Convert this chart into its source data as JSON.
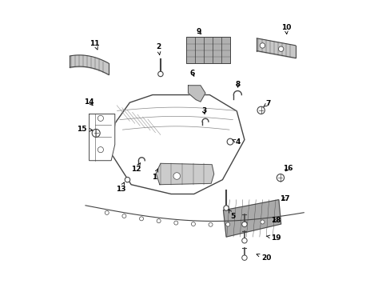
{
  "background_color": "#ffffff",
  "gray": "#444444",
  "light_gray": "#888888",
  "parts_labels": [
    [
      1,
      0.355,
      0.385,
      0.37,
      0.415
    ],
    [
      2,
      0.37,
      0.84,
      0.375,
      0.81
    ],
    [
      3,
      0.53,
      0.615,
      0.535,
      0.595
    ],
    [
      4,
      0.648,
      0.508,
      0.628,
      0.515
    ],
    [
      5,
      0.632,
      0.248,
      0.615,
      0.272
    ],
    [
      6,
      0.49,
      0.748,
      0.5,
      0.728
    ],
    [
      7,
      0.755,
      0.642,
      0.738,
      0.63
    ],
    [
      8,
      0.648,
      0.708,
      0.65,
      0.688
    ],
    [
      9,
      0.512,
      0.892,
      0.528,
      0.878
    ],
    [
      10,
      0.818,
      0.908,
      0.82,
      0.882
    ],
    [
      11,
      0.148,
      0.852,
      0.158,
      0.828
    ],
    [
      12,
      0.292,
      0.412,
      0.308,
      0.435
    ],
    [
      13,
      0.238,
      0.342,
      0.252,
      0.368
    ],
    [
      14,
      0.128,
      0.648,
      0.148,
      0.628
    ],
    [
      15,
      0.102,
      0.552,
      0.142,
      0.548
    ],
    [
      16,
      0.825,
      0.415,
      0.808,
      0.398
    ],
    [
      17,
      0.812,
      0.308,
      0.795,
      0.302
    ],
    [
      18,
      0.782,
      0.232,
      0.762,
      0.228
    ],
    [
      19,
      0.782,
      0.172,
      0.748,
      0.178
    ],
    [
      20,
      0.748,
      0.102,
      0.712,
      0.115
    ]
  ]
}
